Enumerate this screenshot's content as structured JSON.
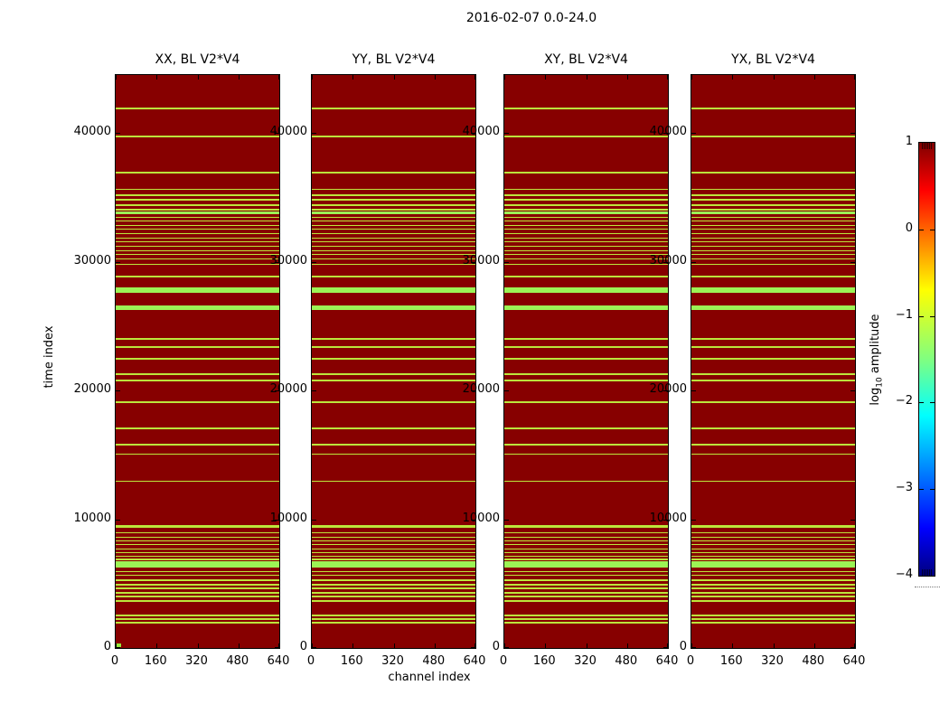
{
  "figure": {
    "suptitle": "2016-02-07 0.0-24.0",
    "xlabel": "channel index",
    "ylabel": "time index"
  },
  "panels": [
    {
      "title": "XX, BL V2*V4"
    },
    {
      "title": "YY, BL V2*V4"
    },
    {
      "title": "XY, BL V2*V4"
    },
    {
      "title": "YX, BL V2*V4"
    }
  ],
  "colorbar": {
    "label_prefix": "log",
    "label_sub": "10",
    "label_suffix": " amplitude",
    "tick_values": [
      1,
      0,
      -1,
      -2,
      -3,
      -4
    ],
    "colormap": "jet",
    "colormap_stops": [
      [
        "0%",
        "#800000"
      ],
      [
        "11%",
        "#ff0000"
      ],
      [
        "34%",
        "#ffff00"
      ],
      [
        "50%",
        "#80ff80"
      ],
      [
        "63%",
        "#00ffff"
      ],
      [
        "89%",
        "#0000ff"
      ],
      [
        "100%",
        "#000080"
      ]
    ]
  },
  "colors": {
    "background_dark_red": "#870000",
    "minor_stripe": "#BCE63C",
    "major_stripe": "#9CF455",
    "origin_dot": "#96E83C",
    "spine": "#000000"
  },
  "chart_data": {
    "type": "heatmap",
    "title": "2016-02-07 0.0-24.0",
    "subplot_titles": [
      "XX, BL V2*V4",
      "YY, BL V2*V4",
      "XY, BL V2*V4",
      "YX, BL V2*V4"
    ],
    "xlabel": "channel index",
    "ylabel": "time index",
    "xlim": [
      0,
      640
    ],
    "ylim": [
      0,
      44500
    ],
    "x_tick_values": [
      0,
      160,
      320,
      480,
      640
    ],
    "y_tick_values": [
      0,
      10000,
      20000,
      30000,
      40000
    ],
    "colorbar_label": "log10 amplitude",
    "colorbar_tick_values": [
      1,
      0,
      -1,
      -2,
      -3,
      -4
    ],
    "colormap": "jet",
    "background_log10_amplitude": 1.0,
    "stripe_format": "[time_index, thickness_in_time_units, level]; level m = thin yellow-green row (log10 amp ~ -0.9), M = thick green band (log10 amp ~ -1.4); pattern identical in all four subplots",
    "stripes": [
      [
        41890,
        110,
        "m"
      ],
      [
        39720,
        140,
        "m"
      ],
      [
        36920,
        140,
        "m"
      ],
      [
        35630,
        110,
        "m"
      ],
      [
        35170,
        110,
        "m"
      ],
      [
        34820,
        110,
        "m"
      ],
      [
        34400,
        110,
        "m"
      ],
      [
        34050,
        110,
        "m"
      ],
      [
        33780,
        210,
        "M"
      ],
      [
        33430,
        110,
        "m"
      ],
      [
        33150,
        110,
        "m"
      ],
      [
        32830,
        110,
        "m"
      ],
      [
        32520,
        110,
        "m"
      ],
      [
        32170,
        110,
        "m"
      ],
      [
        31820,
        110,
        "m"
      ],
      [
        31540,
        110,
        "m"
      ],
      [
        31190,
        110,
        "m"
      ],
      [
        30840,
        110,
        "m"
      ],
      [
        30560,
        110,
        "m"
      ],
      [
        30210,
        110,
        "m"
      ],
      [
        29790,
        110,
        "m"
      ],
      [
        28880,
        140,
        "m"
      ],
      [
        27800,
        420,
        "M"
      ],
      [
        26400,
        350,
        "M"
      ],
      [
        23990,
        140,
        "m"
      ],
      [
        23360,
        110,
        "m"
      ],
      [
        22450,
        140,
        "m"
      ],
      [
        21260,
        110,
        "m"
      ],
      [
        20770,
        110,
        "m"
      ],
      [
        19090,
        110,
        "m"
      ],
      [
        17060,
        110,
        "m"
      ],
      [
        15800,
        110,
        "m"
      ],
      [
        15070,
        110,
        "m"
      ],
      [
        12940,
        110,
        "m"
      ],
      [
        9440,
        175,
        "m"
      ],
      [
        8950,
        110,
        "m"
      ],
      [
        8600,
        110,
        "m"
      ],
      [
        8320,
        110,
        "m"
      ],
      [
        8040,
        110,
        "m"
      ],
      [
        7690,
        110,
        "m"
      ],
      [
        7410,
        110,
        "m"
      ],
      [
        7130,
        110,
        "m"
      ],
      [
        6890,
        110,
        "m"
      ],
      [
        6500,
        490,
        "M"
      ],
      [
        5940,
        110,
        "m"
      ],
      [
        5660,
        110,
        "m"
      ],
      [
        5250,
        110,
        "m"
      ],
      [
        4900,
        110,
        "m"
      ],
      [
        4620,
        110,
        "m"
      ],
      [
        4270,
        110,
        "m"
      ],
      [
        3990,
        110,
        "m"
      ],
      [
        3640,
        110,
        "m"
      ],
      [
        2520,
        110,
        "m"
      ],
      [
        2240,
        110,
        "m"
      ],
      [
        1960,
        110,
        "m"
      ]
    ],
    "origin_marker": {
      "subplot": "XX, BL V2*V4",
      "channel_range": [
        0,
        18
      ],
      "time_range": [
        0,
        300
      ],
      "level": "M"
    }
  }
}
